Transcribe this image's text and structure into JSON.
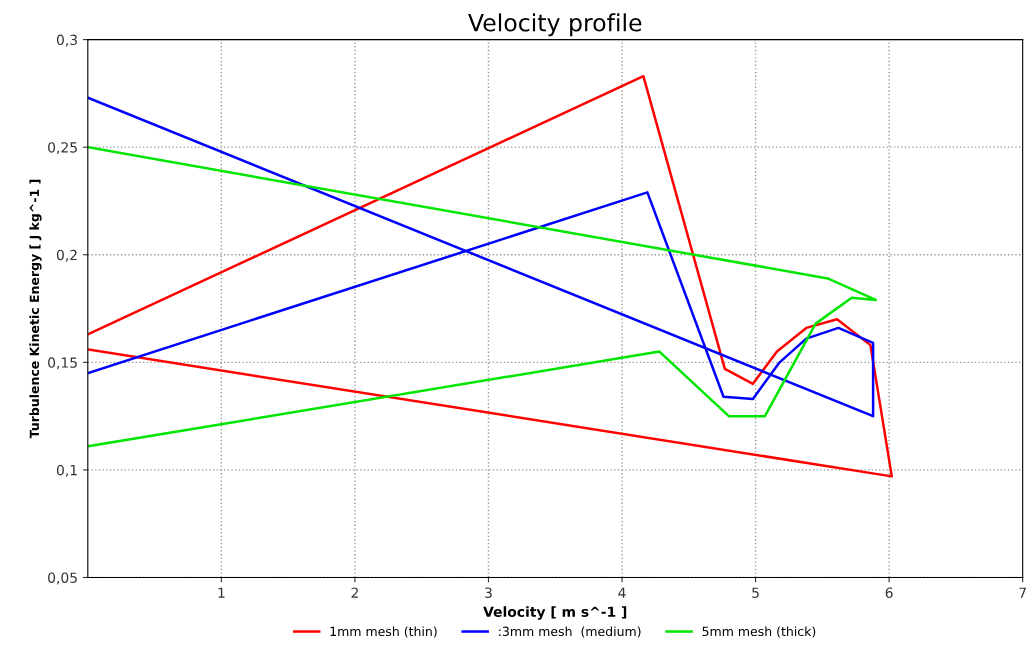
{
  "chart_data": {
    "type": "line",
    "title": "Velocity profile",
    "xlabel": "Velocity [ m s^-1 ]",
    "ylabel": "Turbulence Kinetic Energy [ J kg^-1 ]",
    "series": [
      {
        "name": "1mm mesh (thin)",
        "color": "#ff0000",
        "x": [
          0,
          4.16,
          4.77,
          4.98,
          5.16,
          5.38,
          5.61,
          5.86,
          6.02,
          0
        ],
        "values": [
          0.163,
          0.283,
          0.147,
          0.14,
          0.155,
          0.166,
          0.17,
          0.158,
          0.097,
          0.156
        ]
      },
      {
        "name": ":3mm mesh  (medium)",
        "color": "#0000ff",
        "x": [
          0,
          4.19,
          4.76,
          4.98,
          5.18,
          5.38,
          5.62,
          5.88,
          5.88,
          0
        ],
        "values": [
          0.145,
          0.229,
          0.134,
          0.133,
          0.15,
          0.161,
          0.166,
          0.159,
          0.125,
          0.273
        ]
      },
      {
        "name": "5mm mesh (thick)",
        "color": "#00e600",
        "x": [
          0,
          4.28,
          4.8,
          5.07,
          5.45,
          5.72,
          5.9,
          5.54,
          0
        ],
        "values": [
          0.111,
          0.155,
          0.125,
          0.125,
          0.168,
          0.18,
          0.179,
          0.189,
          0.25
        ]
      }
    ],
    "xlim": [
      0,
      7
    ],
    "xticks": [
      1,
      2,
      3,
      4,
      5,
      6,
      7
    ],
    "ylim": [
      0.05,
      0.3
    ],
    "yticks": [
      {
        "value": 0.05,
        "label": "0,05"
      },
      {
        "value": 0.1,
        "label": "0,1"
      },
      {
        "value": 0.15,
        "label": "0,15"
      },
      {
        "value": 0.2,
        "label": "0,2"
      },
      {
        "value": 0.25,
        "label": "0,25"
      },
      {
        "value": 0.3,
        "label": "0,3"
      }
    ],
    "grid": true,
    "legend": "bottom",
    "marker": "none",
    "line_style": "solid"
  }
}
